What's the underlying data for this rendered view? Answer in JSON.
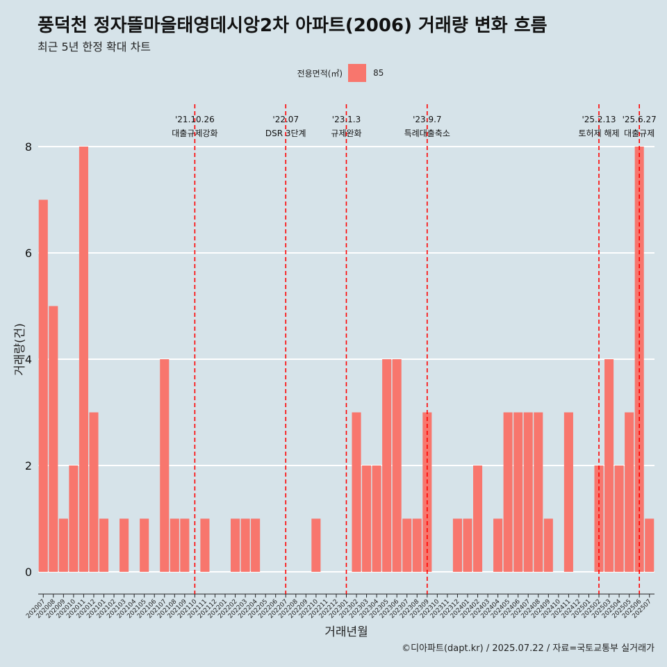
{
  "title": "풍덕천 정자뜰마을태영데시앙2차 아파트(2006) 거래량 변화 흐름",
  "subtitle": "최근 5년 한정 확대 차트",
  "legend": {
    "title": "전용면적(㎡)",
    "entries": [
      "85"
    ]
  },
  "caption": "©디아파트(dapt.kr) / 2025.07.22 / 자료=국토교통부 실거래가",
  "colors": {
    "background": "#d6e3e9",
    "bar": "#f8766d",
    "event_line": "#ff0000",
    "grid": "#ffffff"
  },
  "chart_data": {
    "type": "bar",
    "xlabel": "거래년월",
    "ylabel": "거래량(건)",
    "ylim": [
      0,
      8
    ],
    "yticks": [
      0,
      2,
      4,
      6,
      8
    ],
    "grid": "horizontal major lines",
    "legend_position": "top",
    "categories": [
      "202007",
      "202008",
      "202009",
      "202010",
      "202011",
      "202012",
      "202101",
      "202102",
      "202103",
      "202104",
      "202105",
      "202106",
      "202107",
      "202108",
      "202109",
      "202110",
      "202111",
      "202112",
      "202201",
      "202202",
      "202203",
      "202204",
      "202205",
      "202206",
      "202207",
      "202208",
      "202209",
      "202210",
      "202211",
      "202212",
      "202301",
      "202302",
      "202303",
      "202304",
      "202305",
      "202306",
      "202307",
      "202308",
      "202309",
      "202310",
      "202311",
      "202312",
      "202401",
      "202402",
      "202403",
      "202404",
      "202405",
      "202406",
      "202407",
      "202408",
      "202409",
      "202410",
      "202411",
      "202412",
      "202501",
      "202502",
      "202503",
      "202504",
      "202505",
      "202506",
      "202507"
    ],
    "series": [
      {
        "name": "85",
        "values": [
          7,
          5,
          1,
          2,
          8,
          3,
          1,
          0,
          1,
          0,
          1,
          0,
          4,
          1,
          1,
          0,
          1,
          0,
          0,
          1,
          1,
          1,
          0,
          0,
          0,
          0,
          0,
          1,
          0,
          0,
          0,
          3,
          2,
          2,
          4,
          4,
          1,
          1,
          3,
          0,
          0,
          1,
          1,
          2,
          0,
          1,
          3,
          3,
          3,
          3,
          1,
          0,
          3,
          0,
          0,
          2,
          4,
          2,
          3,
          8,
          1
        ]
      }
    ],
    "annotations": [
      {
        "month": "202110",
        "date": "'21.10.26",
        "label": "대출규제강화"
      },
      {
        "month": "202207",
        "date": "'22.07",
        "label": "DSR 3단계"
      },
      {
        "month": "202301",
        "date": "'23.1.3",
        "label": "규제완화"
      },
      {
        "month": "202309",
        "date": "'23.9.7",
        "label": "특례대출축소"
      },
      {
        "month": "202502",
        "date": "'25.2.13",
        "label": "토허제 해제"
      },
      {
        "month": "202506",
        "date": "'25.6.27",
        "label": "대출규제"
      }
    ]
  }
}
